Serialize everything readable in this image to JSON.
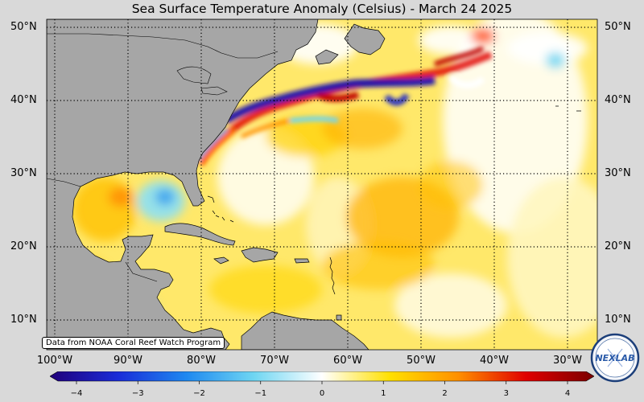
{
  "title": "Sea Surface Temperature Anomaly (Celsius) - March 24 2025",
  "credit": "Data from NOAA Coral Reef Watch Program",
  "lat_labels_left": [
    "50°N",
    "40°N",
    "30°N",
    "20°N",
    "10°N"
  ],
  "lat_labels_right": [
    "50°N",
    "40°N",
    "30°N",
    "20°N",
    "10°N"
  ],
  "lon_labels": [
    "100°W",
    "90°W",
    "80°W",
    "70°W",
    "60°W",
    "50°W",
    "40°W",
    "30°W"
  ],
  "colorbar": {
    "ticks": [
      "−4",
      "−3",
      "−2",
      "−1",
      "0",
      "1",
      "2",
      "3",
      "4"
    ],
    "min": -4,
    "max": 4,
    "colors": [
      "#20007a",
      "#1a2cd8",
      "#1e88f0",
      "#6fd6f2",
      "#ffffff",
      "#ffe000",
      "#ff9000",
      "#e00000",
      "#7a0000"
    ]
  },
  "logo": {
    "text": "NEXLAB",
    "icon": "nexlab-logo-icon"
  },
  "colors": {
    "land": "#a6a6a6",
    "background": "#d9d9d9"
  }
}
